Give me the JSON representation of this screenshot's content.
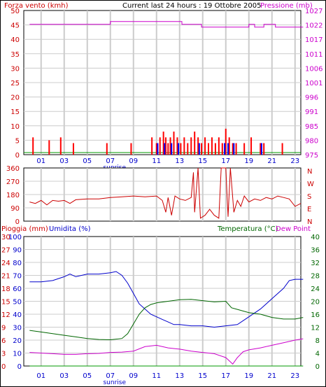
{
  "colors": {
    "wind": "#ff0000",
    "wind_bar_alt": "#0000ff",
    "pressure": "#cc00cc",
    "direction": "#cc0000",
    "humidity": "#0000cc",
    "temperature": "#006600",
    "dewpoint": "#cc00cc",
    "rain": "#009900",
    "grid": "#cccccc",
    "axis_text_red": "#cc0000",
    "axis_text_pink": "#cc00cc",
    "axis_text_blue": "#0000cc",
    "axis_text_green": "#006600",
    "black": "#000000"
  },
  "x_axis": {
    "ticks": [
      "01",
      "03",
      "05",
      "07",
      "09",
      "11",
      "13",
      "15",
      "17",
      "19",
      "21",
      "23"
    ],
    "hours": [
      1,
      3,
      5,
      7,
      9,
      11,
      13,
      15,
      17,
      19,
      21,
      23
    ],
    "sunrise_label": "sunrise",
    "sunrise_hour": 7,
    "range": [
      -0.5,
      23.5
    ]
  },
  "chart_data": [
    {
      "id": "wind-pressure",
      "type": "bar",
      "title": "Current last 24 hours : 19 Ottobre 2005",
      "left_axis_label": "Forza vento (kmh)",
      "right_axis_label": "Pressione (mb)",
      "left_ticks": [
        0,
        5,
        10,
        15,
        20,
        25,
        30,
        35,
        40,
        45,
        50
      ],
      "left_ylim": [
        0,
        50
      ],
      "right_ticks": [
        975,
        980,
        985,
        991,
        996,
        1001,
        1006,
        1011,
        1017,
        1022,
        1027
      ],
      "right_ylim": [
        975,
        1027
      ],
      "wind_gust": [
        [
          0.3,
          6
        ],
        [
          1.7,
          5
        ],
        [
          2.7,
          6
        ],
        [
          3.8,
          4
        ],
        [
          6.7,
          4
        ],
        [
          8.8,
          4
        ],
        [
          10.6,
          6
        ],
        [
          11.0,
          4
        ],
        [
          11.3,
          6
        ],
        [
          11.6,
          8
        ],
        [
          11.8,
          6
        ],
        [
          12.0,
          4
        ],
        [
          12.2,
          6
        ],
        [
          12.5,
          8
        ],
        [
          12.8,
          6
        ],
        [
          13.1,
          4
        ],
        [
          13.4,
          6
        ],
        [
          13.7,
          4
        ],
        [
          14.0,
          6
        ],
        [
          14.3,
          8
        ],
        [
          14.6,
          6
        ],
        [
          14.9,
          4
        ],
        [
          15.2,
          6
        ],
        [
          15.5,
          4
        ],
        [
          15.8,
          6
        ],
        [
          16.1,
          4
        ],
        [
          16.4,
          6
        ],
        [
          16.7,
          4
        ],
        [
          17.0,
          9
        ],
        [
          17.3,
          6
        ],
        [
          17.6,
          4
        ],
        [
          17.9,
          4
        ],
        [
          18.6,
          4
        ],
        [
          19.2,
          6
        ],
        [
          20.0,
          4
        ],
        [
          20.3,
          4
        ],
        [
          21.9,
          4
        ]
      ],
      "wind_avg": [
        [
          11.1,
          4
        ],
        [
          11.7,
          4
        ],
        [
          12.3,
          4
        ],
        [
          12.9,
          4
        ],
        [
          14.7,
          4
        ],
        [
          16.9,
          4
        ],
        [
          17.2,
          4
        ],
        [
          17.7,
          4
        ],
        [
          20.1,
          4
        ]
      ],
      "pressure": [
        [
          0,
          1022
        ],
        [
          6.8,
          1022
        ],
        [
          7.0,
          1023
        ],
        [
          13.0,
          1023
        ],
        [
          13.2,
          1022
        ],
        [
          14.7,
          1022
        ],
        [
          14.9,
          1021
        ],
        [
          18.9,
          1021
        ],
        [
          19.0,
          1022
        ],
        [
          19.4,
          1022
        ],
        [
          19.5,
          1021
        ],
        [
          20.2,
          1021
        ],
        [
          20.3,
          1022
        ],
        [
          21.2,
          1022
        ],
        [
          21.3,
          1021
        ],
        [
          23.7,
          1021
        ]
      ]
    },
    {
      "id": "wind-direction",
      "type": "line",
      "left_ticks": [
        0,
        90,
        180,
        270,
        360
      ],
      "left_ylim": [
        0,
        360
      ],
      "right_labels": [
        "N",
        "W",
        "S",
        "E",
        "N"
      ],
      "direction": [
        [
          0,
          130
        ],
        [
          0.5,
          120
        ],
        [
          1.0,
          140
        ],
        [
          1.5,
          110
        ],
        [
          2.0,
          140
        ],
        [
          2.5,
          135
        ],
        [
          3.0,
          140
        ],
        [
          3.5,
          120
        ],
        [
          4.0,
          145
        ],
        [
          5.0,
          150
        ],
        [
          6.0,
          150
        ],
        [
          7.0,
          160
        ],
        [
          8.0,
          165
        ],
        [
          9.0,
          170
        ],
        [
          10.0,
          165
        ],
        [
          11.0,
          170
        ],
        [
          11.5,
          140
        ],
        [
          11.8,
          60
        ],
        [
          12.0,
          160
        ],
        [
          12.3,
          40
        ],
        [
          12.6,
          170
        ],
        [
          13.0,
          150
        ],
        [
          13.5,
          140
        ],
        [
          14.0,
          160
        ],
        [
          14.2,
          330
        ],
        [
          14.3,
          60
        ],
        [
          14.6,
          360
        ],
        [
          14.8,
          20
        ],
        [
          15.2,
          40
        ],
        [
          15.6,
          80
        ],
        [
          16.0,
          40
        ],
        [
          16.4,
          20
        ],
        [
          16.6,
          360
        ],
        [
          17.0,
          360
        ],
        [
          17.2,
          30
        ],
        [
          17.4,
          360
        ],
        [
          17.7,
          60
        ],
        [
          18.0,
          140
        ],
        [
          18.3,
          100
        ],
        [
          18.6,
          170
        ],
        [
          19.0,
          130
        ],
        [
          19.5,
          150
        ],
        [
          20.0,
          140
        ],
        [
          20.5,
          160
        ],
        [
          21.0,
          150
        ],
        [
          21.5,
          170
        ],
        [
          22.0,
          160
        ],
        [
          22.5,
          150
        ],
        [
          23.0,
          100
        ],
        [
          23.5,
          120
        ]
      ]
    },
    {
      "id": "rain-humidity-temp",
      "type": "line",
      "left_axis_label_rain": "Pioggia (mm)",
      "left_axis_label_hum": "Umidita (%)",
      "right_axis_label_temp": "Temperatura (°C)",
      "right_axis_label_dew": "Dew Point",
      "rain_ticks": [
        0,
        3,
        6,
        9,
        12,
        15,
        18,
        21,
        24,
        27,
        30
      ],
      "rain_ylim": [
        0,
        30
      ],
      "humidity_ticks": [
        0,
        10,
        20,
        30,
        40,
        50,
        60,
        70,
        80,
        90,
        100
      ],
      "humidity_ylim": [
        0,
        100
      ],
      "temp_ticks": [
        0,
        4,
        8,
        12,
        16,
        20,
        24,
        28,
        32,
        36,
        40
      ],
      "temp_ylim": [
        0,
        40
      ],
      "humidity": [
        [
          0,
          65
        ],
        [
          1,
          65
        ],
        [
          2,
          66
        ],
        [
          3,
          69
        ],
        [
          3.5,
          71
        ],
        [
          4.0,
          69
        ],
        [
          5.0,
          71
        ],
        [
          6.0,
          71
        ],
        [
          7.0,
          72
        ],
        [
          7.5,
          73
        ],
        [
          8.0,
          70
        ],
        [
          8.5,
          64
        ],
        [
          9.0,
          56
        ],
        [
          9.5,
          48
        ],
        [
          10.0,
          44
        ],
        [
          10.5,
          40
        ],
        [
          11.0,
          38
        ],
        [
          11.5,
          36
        ],
        [
          12.0,
          34
        ],
        [
          12.5,
          32
        ],
        [
          13.0,
          32
        ],
        [
          14.0,
          31
        ],
        [
          15.0,
          31
        ],
        [
          16.0,
          30
        ],
        [
          17.0,
          31
        ],
        [
          18.0,
          32
        ],
        [
          19.0,
          38
        ],
        [
          20.0,
          44
        ],
        [
          21.0,
          52
        ],
        [
          22.0,
          60
        ],
        [
          22.5,
          66
        ],
        [
          23.0,
          67
        ],
        [
          23.7,
          67
        ]
      ],
      "temperature": [
        [
          0,
          11
        ],
        [
          1,
          10.5
        ],
        [
          2,
          10
        ],
        [
          3,
          9.5
        ],
        [
          4,
          9
        ],
        [
          5,
          8.5
        ],
        [
          6,
          8.2
        ],
        [
          7,
          8.1
        ],
        [
          8,
          8.5
        ],
        [
          8.5,
          10
        ],
        [
          9,
          13
        ],
        [
          9.5,
          16
        ],
        [
          10,
          18
        ],
        [
          10.5,
          19
        ],
        [
          11,
          19.5
        ],
        [
          12,
          20
        ],
        [
          13,
          20.5
        ],
        [
          14,
          20.6
        ],
        [
          15,
          20.2
        ],
        [
          16,
          19.8
        ],
        [
          17,
          20
        ],
        [
          17.5,
          18
        ],
        [
          18,
          17.5
        ],
        [
          19,
          16.5
        ],
        [
          20,
          16
        ],
        [
          21,
          15
        ],
        [
          22,
          14.5
        ],
        [
          23,
          14.5
        ],
        [
          23.7,
          15
        ]
      ],
      "dewpoint": [
        [
          0,
          4.2
        ],
        [
          1,
          4
        ],
        [
          2,
          3.8
        ],
        [
          3,
          3.6
        ],
        [
          4,
          3.6
        ],
        [
          5,
          3.8
        ],
        [
          6,
          3.9
        ],
        [
          7,
          4.2
        ],
        [
          8,
          4.3
        ],
        [
          9,
          4.6
        ],
        [
          10,
          6
        ],
        [
          11,
          6.4
        ],
        [
          12,
          5.6
        ],
        [
          13,
          5.2
        ],
        [
          14,
          4.6
        ],
        [
          15,
          4.2
        ],
        [
          16,
          3.8
        ],
        [
          17,
          2.6
        ],
        [
          17.6,
          0.6
        ],
        [
          18.0,
          2.6
        ],
        [
          18.5,
          4.4
        ],
        [
          19,
          5
        ],
        [
          20,
          5.6
        ],
        [
          21,
          6.4
        ],
        [
          22,
          7.2
        ],
        [
          23,
          8
        ],
        [
          23.7,
          8.4
        ]
      ],
      "rain": [
        [
          0,
          0
        ],
        [
          23.7,
          0
        ]
      ]
    }
  ]
}
